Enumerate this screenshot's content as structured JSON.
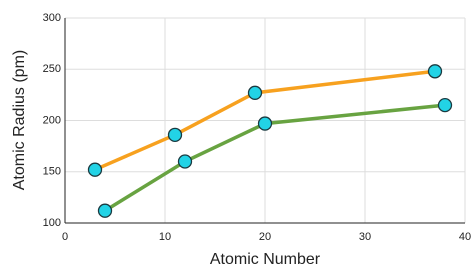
{
  "chart_data": {
    "type": "line",
    "x_label": "Atomic Number",
    "y_label": "Atomic Radius (pm)",
    "series": [
      {
        "color": "#f7a11f",
        "x": [
          3,
          11,
          19,
          37
        ],
        "values": [
          152,
          186,
          227,
          248
        ]
      },
      {
        "color": "#68a341",
        "x": [
          4,
          12,
          20,
          38
        ],
        "values": [
          112,
          160,
          197,
          215
        ]
      }
    ],
    "marker_color": "#22d3e6",
    "xlim": [
      0,
      40
    ],
    "xticks": [
      0,
      10,
      20,
      30,
      40
    ],
    "ylim": [
      100,
      300
    ],
    "yticks": [
      100,
      150,
      200,
      250,
      300
    ],
    "grid": true
  }
}
